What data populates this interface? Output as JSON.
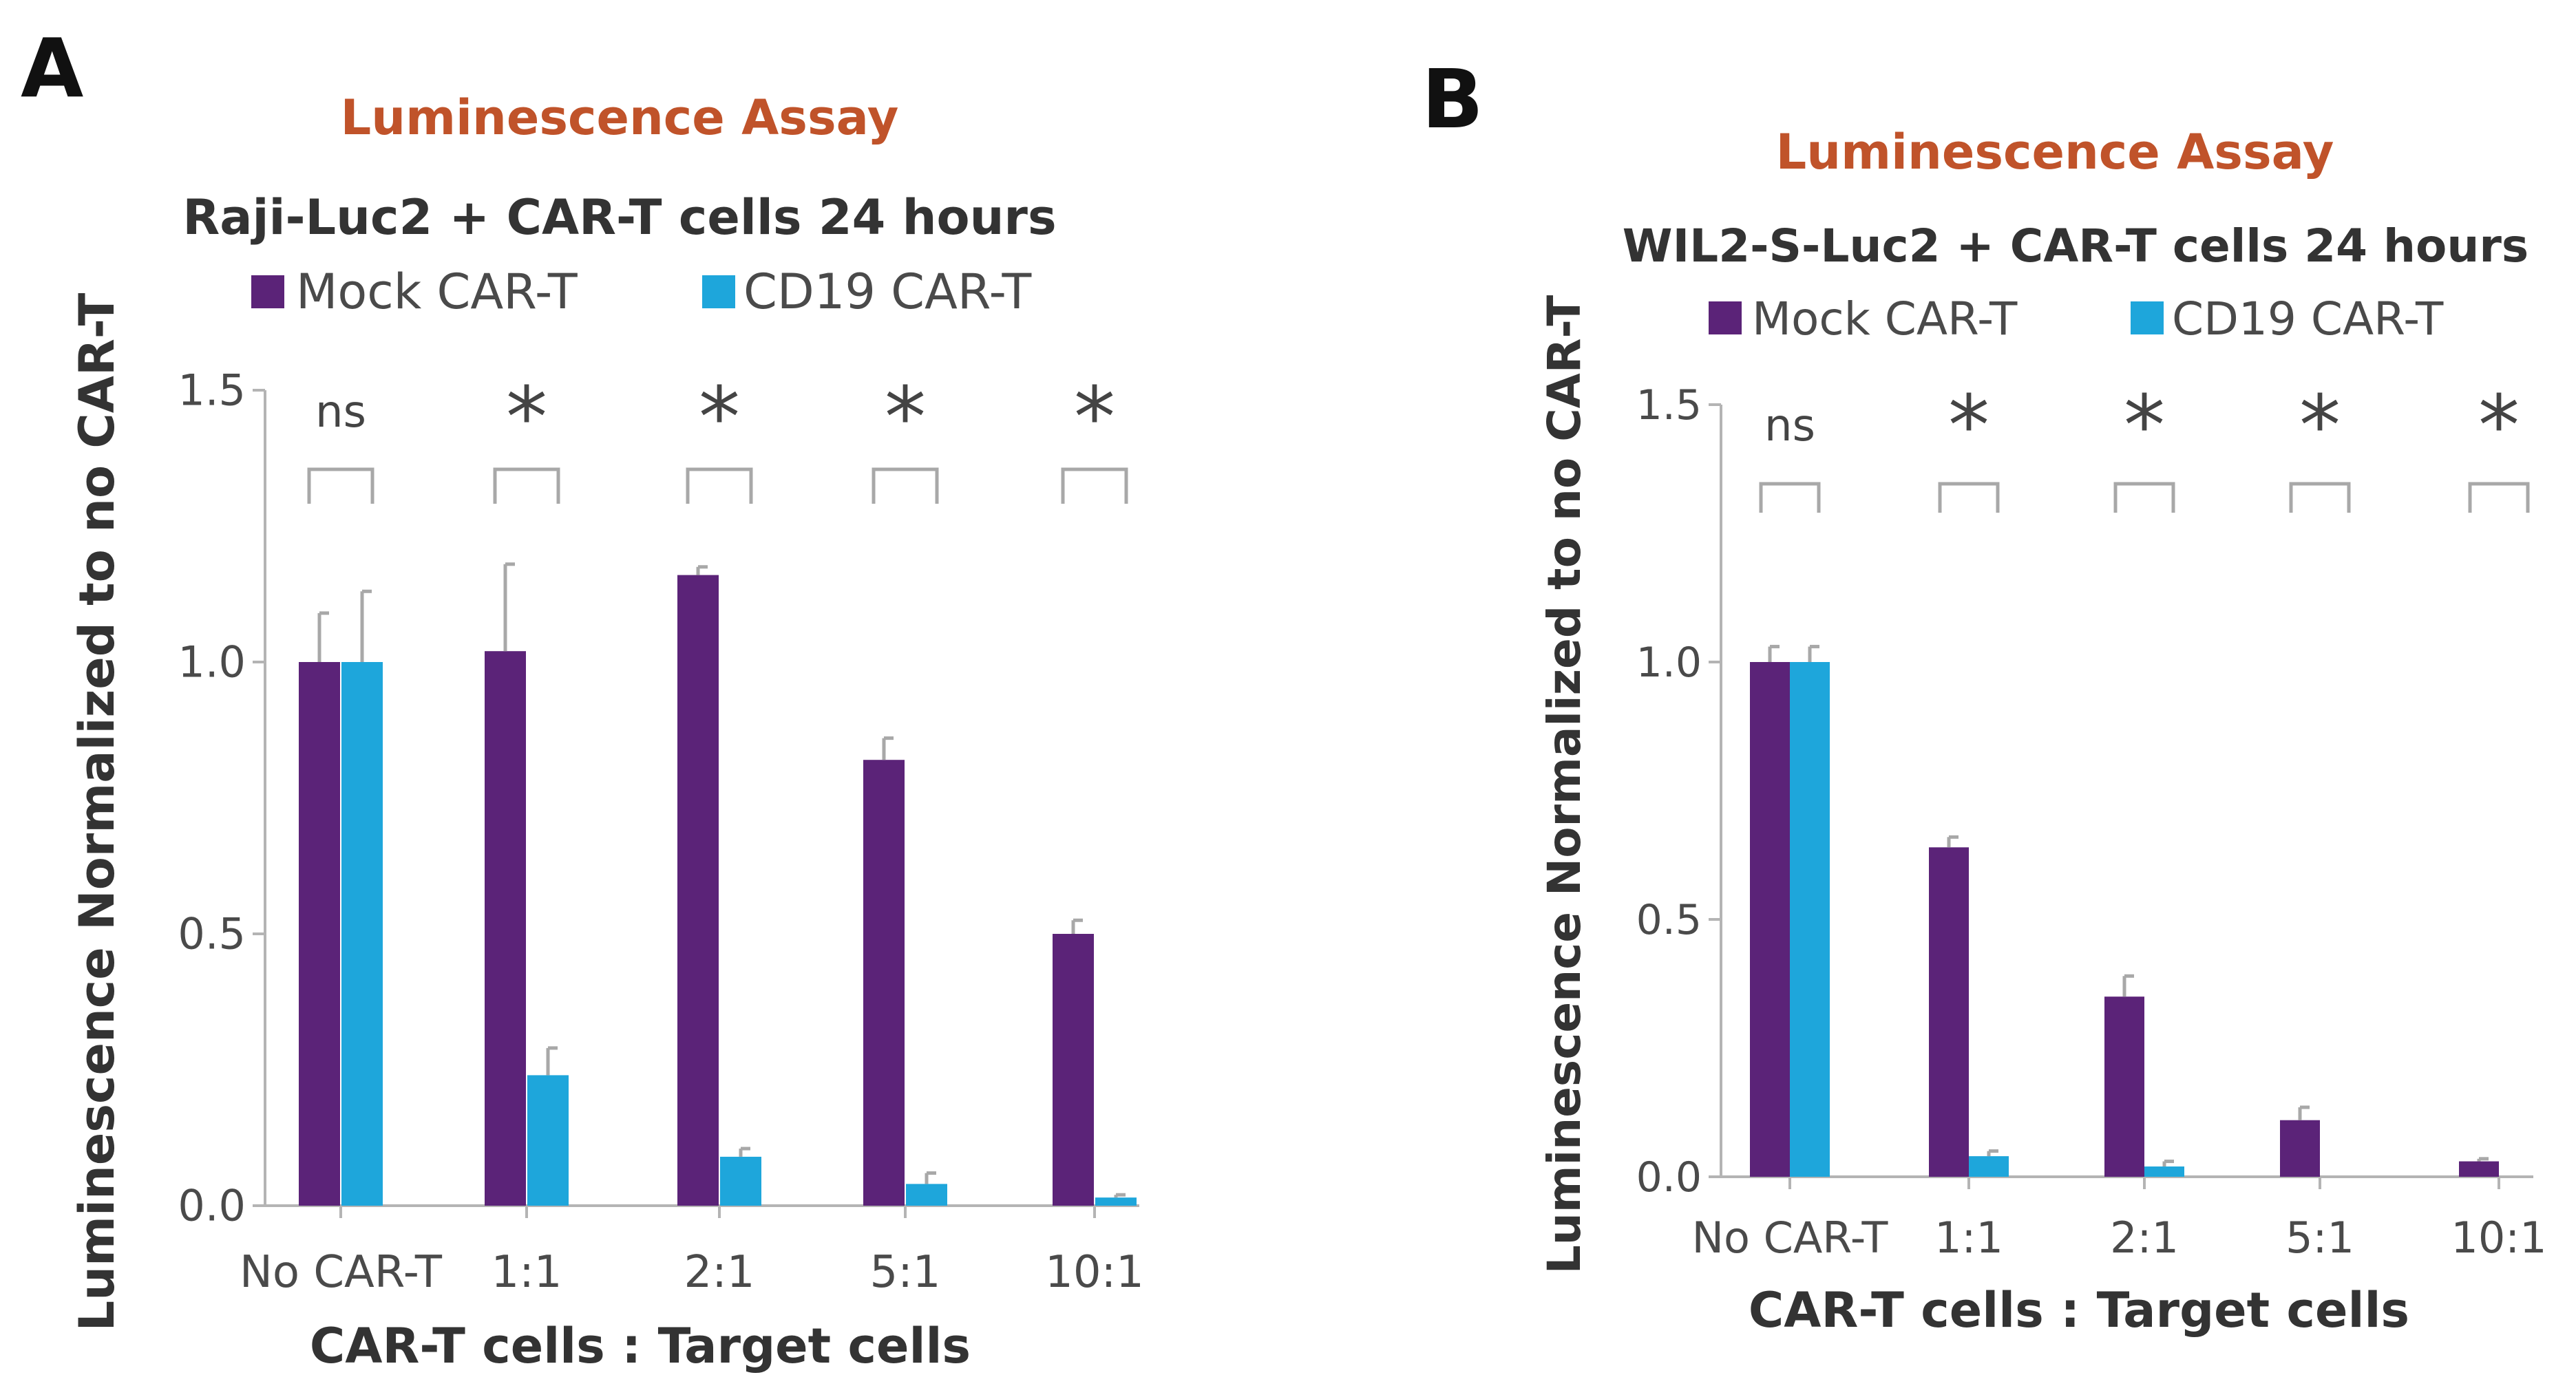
{
  "colors": {
    "mock": "#5b2378",
    "cd19": "#1ea6db",
    "assay_title": "#c0532a",
    "axis": "#b4b4b4",
    "text": "#333333",
    "tick_text": "#4a4a4a",
    "error": "#a8a8a8",
    "bracket": "#a8a8a8"
  },
  "chart_data": [
    {
      "panel_label": "A",
      "type": "bar",
      "assay_title": "Luminescence Assay",
      "title": "Raji-Luc2 + CAR-T cells 24 hours",
      "xlabel": "CAR-T cells : Target cells",
      "ylabel": "Luminescence Normalized to no CAR-T",
      "ylim": [
        0,
        1.5
      ],
      "yticks": [
        "0.0",
        "0.5",
        "1.0",
        "1.5"
      ],
      "yticks_values": [
        0,
        0.5,
        1.0,
        1.5
      ],
      "categories": [
        "No CAR-T",
        "1:1",
        "2:1",
        "5:1",
        "10:1"
      ],
      "series": [
        {
          "name": "Mock CAR-T",
          "values": [
            1.0,
            1.02,
            1.16,
            0.82,
            0.5
          ],
          "errors": [
            0.09,
            0.16,
            0.015,
            0.04,
            0.025
          ]
        },
        {
          "name": "CD19 CAR-T",
          "values": [
            1.0,
            0.24,
            0.09,
            0.04,
            0.015
          ],
          "errors": [
            0.13,
            0.05,
            0.015,
            0.02,
            0.005
          ]
        }
      ],
      "significance": [
        "ns",
        "*",
        "*",
        "*",
        "*"
      ]
    },
    {
      "panel_label": "B",
      "type": "bar",
      "assay_title": "Luminescence Assay",
      "title": "WIL2-S-Luc2 + CAR-T cells 24 hours",
      "xlabel": "CAR-T cells : Target cells",
      "ylabel": "Luminescence Normalized to no CAR-T",
      "ylim": [
        0,
        1.5
      ],
      "yticks": [
        "0.0",
        "0.5",
        "1.0",
        "1.5"
      ],
      "yticks_values": [
        0,
        0.5,
        1.0,
        1.5
      ],
      "categories": [
        "No CAR-T",
        "1:1",
        "2:1",
        "5:1",
        "10:1"
      ],
      "series": [
        {
          "name": "Mock CAR-T",
          "values": [
            1.0,
            0.64,
            0.35,
            0.11,
            0.03
          ],
          "errors": [
            0.03,
            0.02,
            0.04,
            0.025,
            0.005
          ]
        },
        {
          "name": "CD19 CAR-T",
          "values": [
            1.0,
            0.04,
            0.02,
            0.0,
            0.0
          ],
          "errors": [
            0.03,
            0.01,
            0.01,
            0.0,
            0.0
          ]
        }
      ],
      "significance": [
        "ns",
        "*",
        "*",
        "*",
        "*"
      ]
    }
  ]
}
